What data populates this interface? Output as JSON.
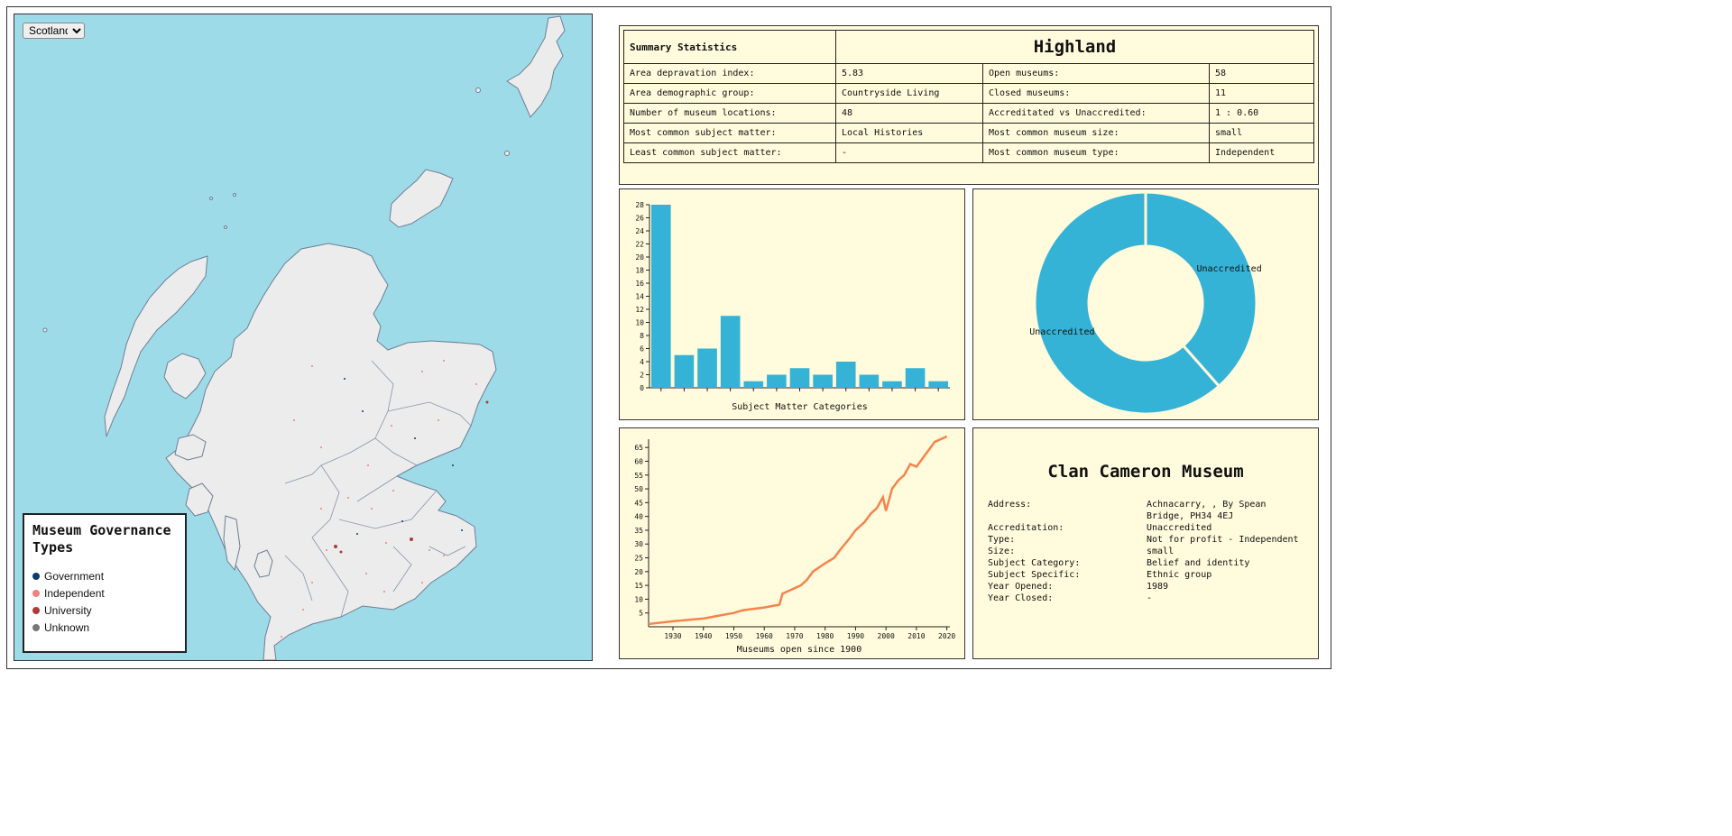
{
  "map": {
    "region_select": {
      "value": "Scotland",
      "options": [
        "Scotland"
      ]
    },
    "legend": {
      "title": "Museum Governance Types",
      "items": [
        {
          "label": "Government",
          "color": "#0b3b6f"
        },
        {
          "label": "Independent",
          "color": "#f08080"
        },
        {
          "label": "University",
          "color": "#b03a3a"
        },
        {
          "label": "Unknown",
          "color": "#777777"
        }
      ]
    },
    "colors": {
      "sea": "#9edbe8",
      "land": "#ececec",
      "boundary": "#6b7f95"
    }
  },
  "summary": {
    "heading": "Summary Statistics",
    "area_name": "Highland",
    "rows": [
      {
        "k1": "Area depravation index:",
        "v1": "5.83",
        "k2": "Open museums:",
        "v2": "58"
      },
      {
        "k1": "Area demographic group:",
        "v1": "Countryside Living",
        "k2": "Closed museums:",
        "v2": "11"
      },
      {
        "k1": "Number of museum locations:",
        "v1": "48",
        "k2": "Accreditated vs Unaccredited:",
        "v2": "1 : 0.60"
      },
      {
        "k1": "Most common subject matter:",
        "v1": "Local Histories",
        "k2": "Most common museum size:",
        "v2": "small"
      },
      {
        "k1": "Least common subject matter:",
        "v1": "-",
        "k2": "Most common museum type:",
        "v2": "Independent"
      }
    ]
  },
  "chart_data": [
    {
      "type": "bar",
      "xlabel": "Subject Matter Categories",
      "values": [
        28,
        5,
        6,
        11,
        1,
        2,
        3,
        2,
        4,
        2,
        1,
        3,
        1
      ],
      "ylim": [
        0,
        28
      ],
      "yticks": [
        0,
        2,
        4,
        6,
        8,
        10,
        12,
        14,
        16,
        18,
        20,
        22,
        24,
        26,
        28
      ],
      "color": "#35b3d6"
    },
    {
      "type": "pie",
      "donut": true,
      "slices": [
        {
          "label": "Unaccredited",
          "value": 38.5
        },
        {
          "label": "Unaccredited",
          "value": 61.5
        }
      ],
      "color": "#35b3d6"
    },
    {
      "type": "line",
      "xlabel": "Museums open since 1900",
      "x": [
        1922,
        1930,
        1940,
        1945,
        1950,
        1953,
        1960,
        1965,
        1966,
        1968,
        1970,
        1972,
        1974,
        1976,
        1980,
        1983,
        1985,
        1988,
        1990,
        1993,
        1995,
        1997,
        1998,
        1999,
        2000,
        2002,
        2004,
        2006,
        2008,
        2010,
        2012,
        2014,
        2016,
        2018,
        2020
      ],
      "y": [
        1,
        2,
        3,
        4,
        5,
        6,
        7,
        8,
        12,
        13,
        14,
        15,
        17,
        20,
        23,
        25,
        28,
        32,
        35,
        38,
        41,
        43,
        45,
        47,
        42,
        50,
        53,
        55,
        59,
        58,
        61,
        64,
        67,
        68,
        69
      ],
      "xlim": [
        1922,
        2021
      ],
      "ylim": [
        0,
        68
      ],
      "xticks": [
        1930,
        1940,
        1950,
        1960,
        1970,
        1980,
        1990,
        2000,
        2010,
        2020
      ],
      "yticks": [
        5,
        10,
        15,
        20,
        25,
        30,
        35,
        40,
        45,
        50,
        55,
        60,
        65
      ],
      "color": "#f4844c"
    }
  ],
  "museum": {
    "name": "Clan Cameron Museum",
    "fields": [
      {
        "key": "Address:",
        "value": "Achnacarry, , By Spean Bridge, PH34 4EJ"
      },
      {
        "key": "Accreditation:",
        "value": "Unaccredited"
      },
      {
        "key": "Type:",
        "value": "Not for profit - Independent"
      },
      {
        "key": "Size:",
        "value": "small"
      },
      {
        "key": "Subject Category:",
        "value": "Belief and identity"
      },
      {
        "key": "Subject Specific:",
        "value": "Ethnic group"
      },
      {
        "key": "Year Opened:",
        "value": "1989"
      },
      {
        "key": "Year Closed:",
        "value": "-"
      }
    ]
  }
}
